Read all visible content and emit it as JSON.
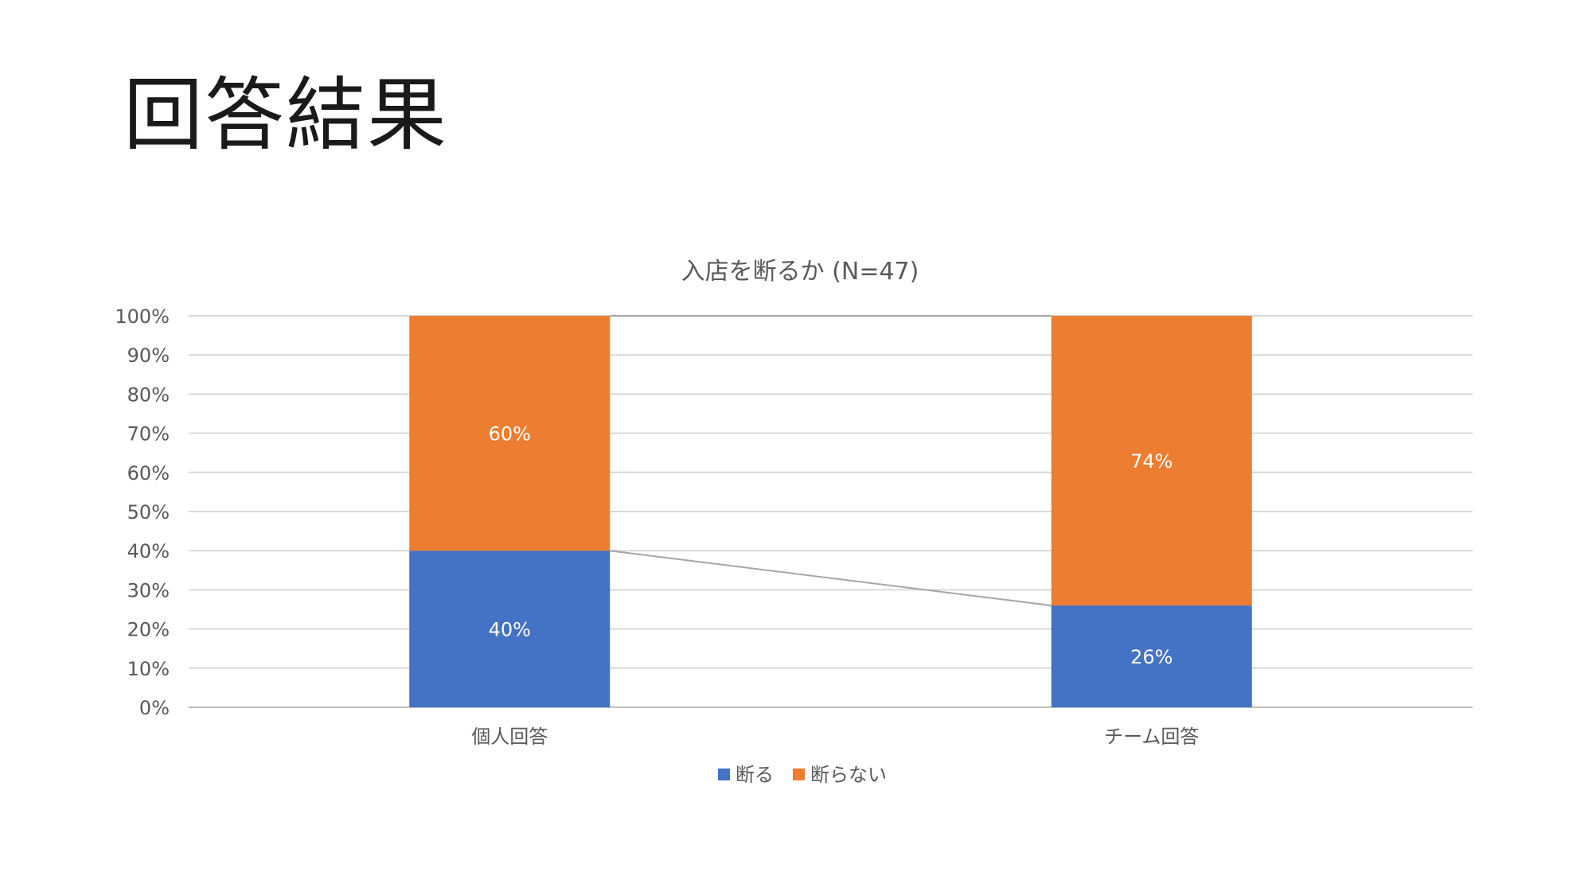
{
  "slide": {
    "title": "回答結果"
  },
  "chart_data": {
    "type": "bar",
    "stacked": true,
    "title": "入店を断るか (N=47)",
    "categories": [
      "個人回答",
      "チーム回答"
    ],
    "series": [
      {
        "name": "断る",
        "values": [
          40,
          26
        ],
        "labels": [
          "40%",
          "26%"
        ],
        "color": "#4472C4"
      },
      {
        "name": "断らない",
        "values": [
          60,
          74
        ],
        "labels": [
          "60%",
          "74%"
        ],
        "color": "#ED7D31"
      }
    ],
    "ylim": [
      0,
      100
    ],
    "yticks": [
      0,
      10,
      20,
      30,
      40,
      50,
      60,
      70,
      80,
      90,
      100
    ],
    "ytick_labels": [
      "0%",
      "10%",
      "20%",
      "30%",
      "40%",
      "50%",
      "60%",
      "70%",
      "80%",
      "90%",
      "100%"
    ],
    "grid": true,
    "series_lines": true,
    "legend": "bottom"
  }
}
